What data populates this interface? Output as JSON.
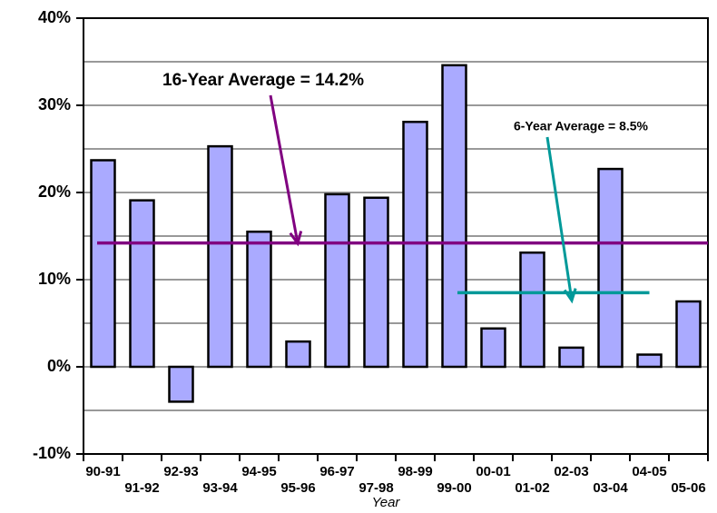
{
  "chart_data": {
    "type": "bar",
    "x_label": "Year",
    "categories": [
      "90-91",
      "91-92",
      "92-93",
      "93-94",
      "94-95",
      "95-96",
      "96-97",
      "97-98",
      "98-99",
      "99-00",
      "00-01",
      "01-02",
      "02-03",
      "03-04",
      "04-05",
      "05-06"
    ],
    "values": [
      23.7,
      19.1,
      -4.0,
      25.3,
      15.5,
      2.9,
      19.8,
      19.4,
      28.1,
      34.6,
      4.4,
      13.1,
      2.2,
      22.7,
      1.4,
      7.5
    ],
    "color": "#aaaaff",
    "ylim": [
      -10,
      40
    ],
    "yticks": [
      {
        "value": -10,
        "label": "-10%"
      },
      {
        "value": 0,
        "label": "0%"
      },
      {
        "value": 10,
        "label": "10%"
      },
      {
        "value": 20,
        "label": "20%"
      },
      {
        "value": 30,
        "label": "30%"
      },
      {
        "value": 40,
        "label": "40%"
      }
    ],
    "ygrid": [
      -5,
      5,
      15,
      25,
      35
    ],
    "grid": true,
    "reference_lines": [
      {
        "label": "16-Year Average = 14.2%",
        "value": 14.2,
        "color": "#800080",
        "from": "90-91",
        "to": "05-06"
      },
      {
        "label": "6-Year Average = 8.5%",
        "value": 8.5,
        "color": "#009999",
        "from": "00-01",
        "to": "04-05"
      }
    ]
  }
}
